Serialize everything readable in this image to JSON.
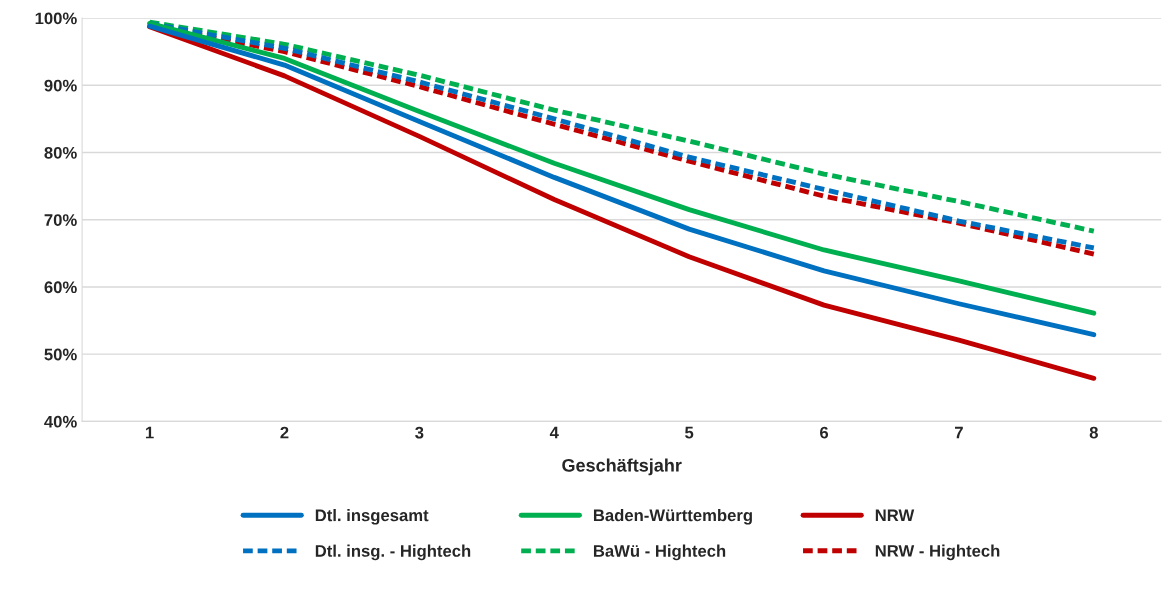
{
  "chart_data": {
    "type": "line",
    "xlabel": "Geschäftsjahr",
    "categories": [
      "1",
      "2",
      "3",
      "4",
      "5",
      "6",
      "7",
      "8"
    ],
    "series": [
      {
        "name": "Dtl. insgesamt",
        "color": "#0070c0",
        "line_style": "solid",
        "values": [
          98.8,
          93.0,
          84.6,
          76.3,
          68.6,
          62.4,
          57.5,
          52.9
        ]
      },
      {
        "name": "Baden-Württemberg",
        "color": "#00b050",
        "line_style": "solid",
        "values": [
          99.2,
          94.0,
          86.1,
          78.4,
          71.5,
          65.5,
          60.9,
          56.1
        ]
      },
      {
        "name": "NRW",
        "color": "#c00000",
        "line_style": "solid",
        "values": [
          98.7,
          91.4,
          82.4,
          73.0,
          64.5,
          57.3,
          52.1,
          46.4
        ]
      },
      {
        "name": "Dtl. insg. - Hightech",
        "color": "#0070c0",
        "line_style": "dashed",
        "values": [
          99.2,
          95.5,
          90.5,
          85.0,
          79.3,
          74.5,
          69.8,
          65.8
        ]
      },
      {
        "name": "BaWü - Hightech",
        "color": "#00b050",
        "line_style": "dashed",
        "values": [
          99.4,
          96.1,
          91.5,
          86.3,
          81.7,
          76.8,
          72.7,
          68.3
        ]
      },
      {
        "name": "NRW - Hightech",
        "color": "#c00000",
        "line_style": "dashed",
        "values": [
          99.0,
          95.0,
          89.8,
          84.2,
          78.7,
          73.5,
          69.5,
          64.9
        ]
      }
    ],
    "ylim": [
      40,
      100
    ],
    "yticks": [
      {
        "value": 40,
        "label": "40%"
      },
      {
        "value": 50,
        "label": "50%"
      },
      {
        "value": 60,
        "label": "60%"
      },
      {
        "value": 70,
        "label": "70%"
      },
      {
        "value": 80,
        "label": "80%"
      },
      {
        "value": 90,
        "label": "90%"
      },
      {
        "value": 100,
        "label": "100%"
      }
    ],
    "grid": "y",
    "legend": "bottom",
    "marker": "none"
  }
}
